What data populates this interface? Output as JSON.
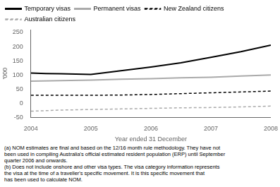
{
  "chart_data": {
    "type": "line",
    "x_label": "Year ended 31 December",
    "y_label": "'000",
    "xlim": [
      2004,
      2008
    ],
    "ylim": [
      -50,
      260
    ],
    "xticks": [
      2004,
      2005,
      2006,
      2007,
      2008
    ],
    "yticks": [
      -50,
      0,
      50,
      100,
      150,
      200,
      250
    ],
    "grid": false,
    "legend": "top",
    "series": [
      {
        "name": "Temporary visas",
        "color": "#000000",
        "line_style": "solid",
        "x": [
          2004,
          2004.25,
          2004.5,
          2004.75,
          2005,
          2005.5,
          2006,
          2006.5,
          2007,
          2007.5,
          2008
        ],
        "values": [
          107,
          105,
          104,
          103,
          102,
          115,
          128,
          143,
          162,
          182,
          205
        ]
      },
      {
        "name": "Permanent visas",
        "color": "#aaaaaa",
        "line_style": "solid",
        "x": [
          2004,
          2004.5,
          2005,
          2005.5,
          2006,
          2006.5,
          2007,
          2007.5,
          2008
        ],
        "values": [
          78,
          80,
          82,
          85,
          87,
          90,
          92,
          96,
          100
        ]
      },
      {
        "name": "New Zealand citizens",
        "color": "#000000",
        "line_style": "dashed",
        "x": [
          2004,
          2004.5,
          2005,
          2005.5,
          2006,
          2006.5,
          2007,
          2007.5,
          2008
        ],
        "values": [
          28,
          28,
          28,
          29,
          31,
          34,
          37,
          40,
          43
        ]
      },
      {
        "name": "Australian citizens",
        "color": "#aaaaaa",
        "line_style": "dashed",
        "x": [
          2004,
          2004.5,
          2005,
          2005.5,
          2006,
          2006.5,
          2007,
          2007.5,
          2008
        ],
        "values": [
          -28,
          -24,
          -22,
          -20,
          -18,
          -16,
          -15,
          -13,
          -10
        ]
      }
    ],
    "annotations": [
      "(a) NOM estimates are final and based on the 12/16 month rule methodology. They have not",
      "been used in compiling Australia's official estimated resident population (ERP) until September",
      "quarter 2006 and onwards.",
      "(b) Does not include onshore and other visa types. The visa category information represents",
      "the visa at the time of a traveller's specific movement. It is this specific movement that",
      "has been used to calculate NOM."
    ]
  }
}
